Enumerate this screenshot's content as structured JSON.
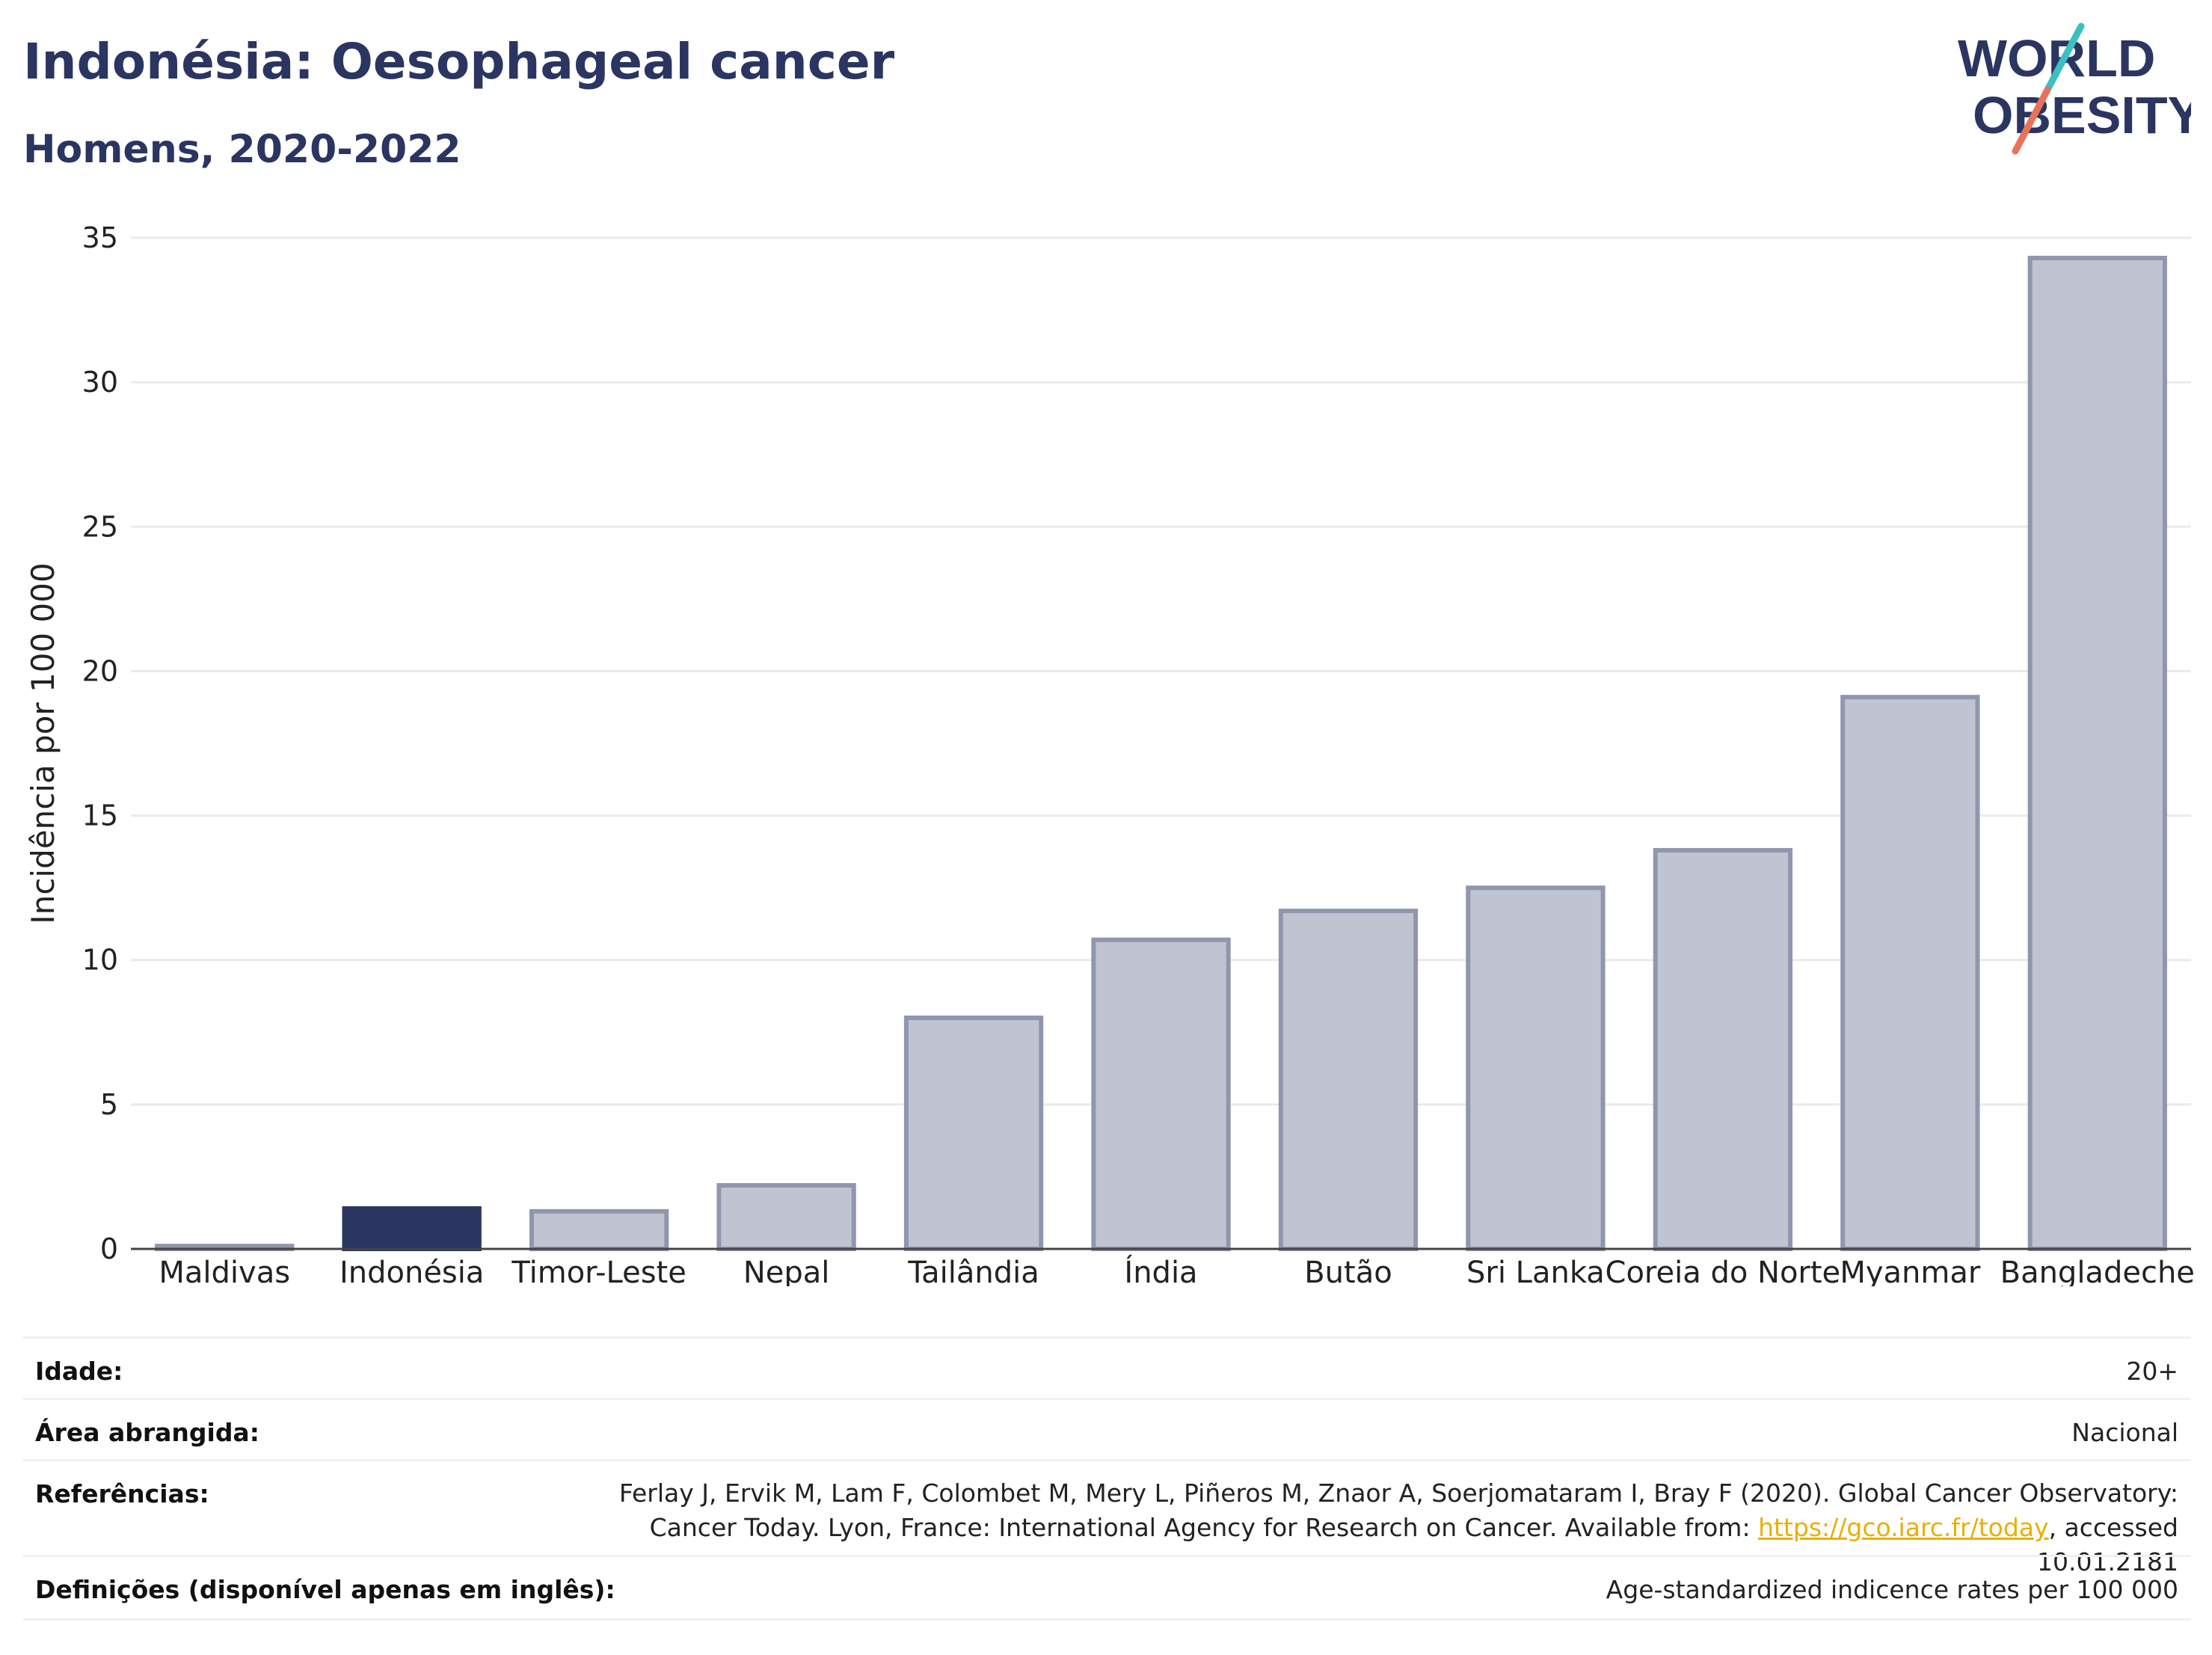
{
  "title": "Indonésia: Oesophageal cancer",
  "subtitle": "Homens, 2020-2022",
  "logo": {
    "line1": "WORLD",
    "line2": "OBESITY",
    "text_color": "#2a3561",
    "accent_teal": "#3cbfc3",
    "accent_coral": "#e8735a"
  },
  "chart_data": {
    "type": "bar",
    "categories": [
      "Maldivas",
      "Indonésia",
      "Timor-Leste",
      "Nepal",
      "Tailândia",
      "Índia",
      "Butão",
      "Sri Lanka",
      "Coreia do Norte",
      "Myanmar",
      "Bangladeche"
    ],
    "values": [
      0.1,
      1.4,
      1.3,
      2.2,
      8.0,
      10.7,
      11.7,
      12.5,
      13.8,
      19.1,
      34.3
    ],
    "highlight": "Indonésia",
    "ylabel": "Incidência por 100 000",
    "xlabel": "",
    "ylim": [
      0,
      35
    ],
    "yticks": [
      0,
      5,
      10,
      15,
      20,
      25,
      30,
      35
    ],
    "grid": true,
    "colors": {
      "bar": "#c0c3d0",
      "bar_border": "#9196ae",
      "highlight": "#2a3561",
      "grid": "#e8eaee",
      "axis": "#444444"
    }
  },
  "meta": {
    "age_label": "Idade:",
    "age_value": "20+",
    "area_label": "Área abrangida:",
    "area_value": "Nacional",
    "ref_label": "Referências:",
    "ref_text_1": "Ferlay J, Ervik M, Lam F, Colombet M, Mery L, Piñeros M, Znaor A, Soerjomataram I, Bray F (2020). Global Cancer Observatory: Cancer Today. Lyon, France: International Agency for Research on Cancer. Available from: ",
    "ref_link": "https://gco.iarc.fr/today",
    "ref_text_2": ", accessed 10.01.2181",
    "def_label": "Definições (disponível apenas em inglês):",
    "def_value": "Age-standardized indicence rates per 100 000"
  }
}
